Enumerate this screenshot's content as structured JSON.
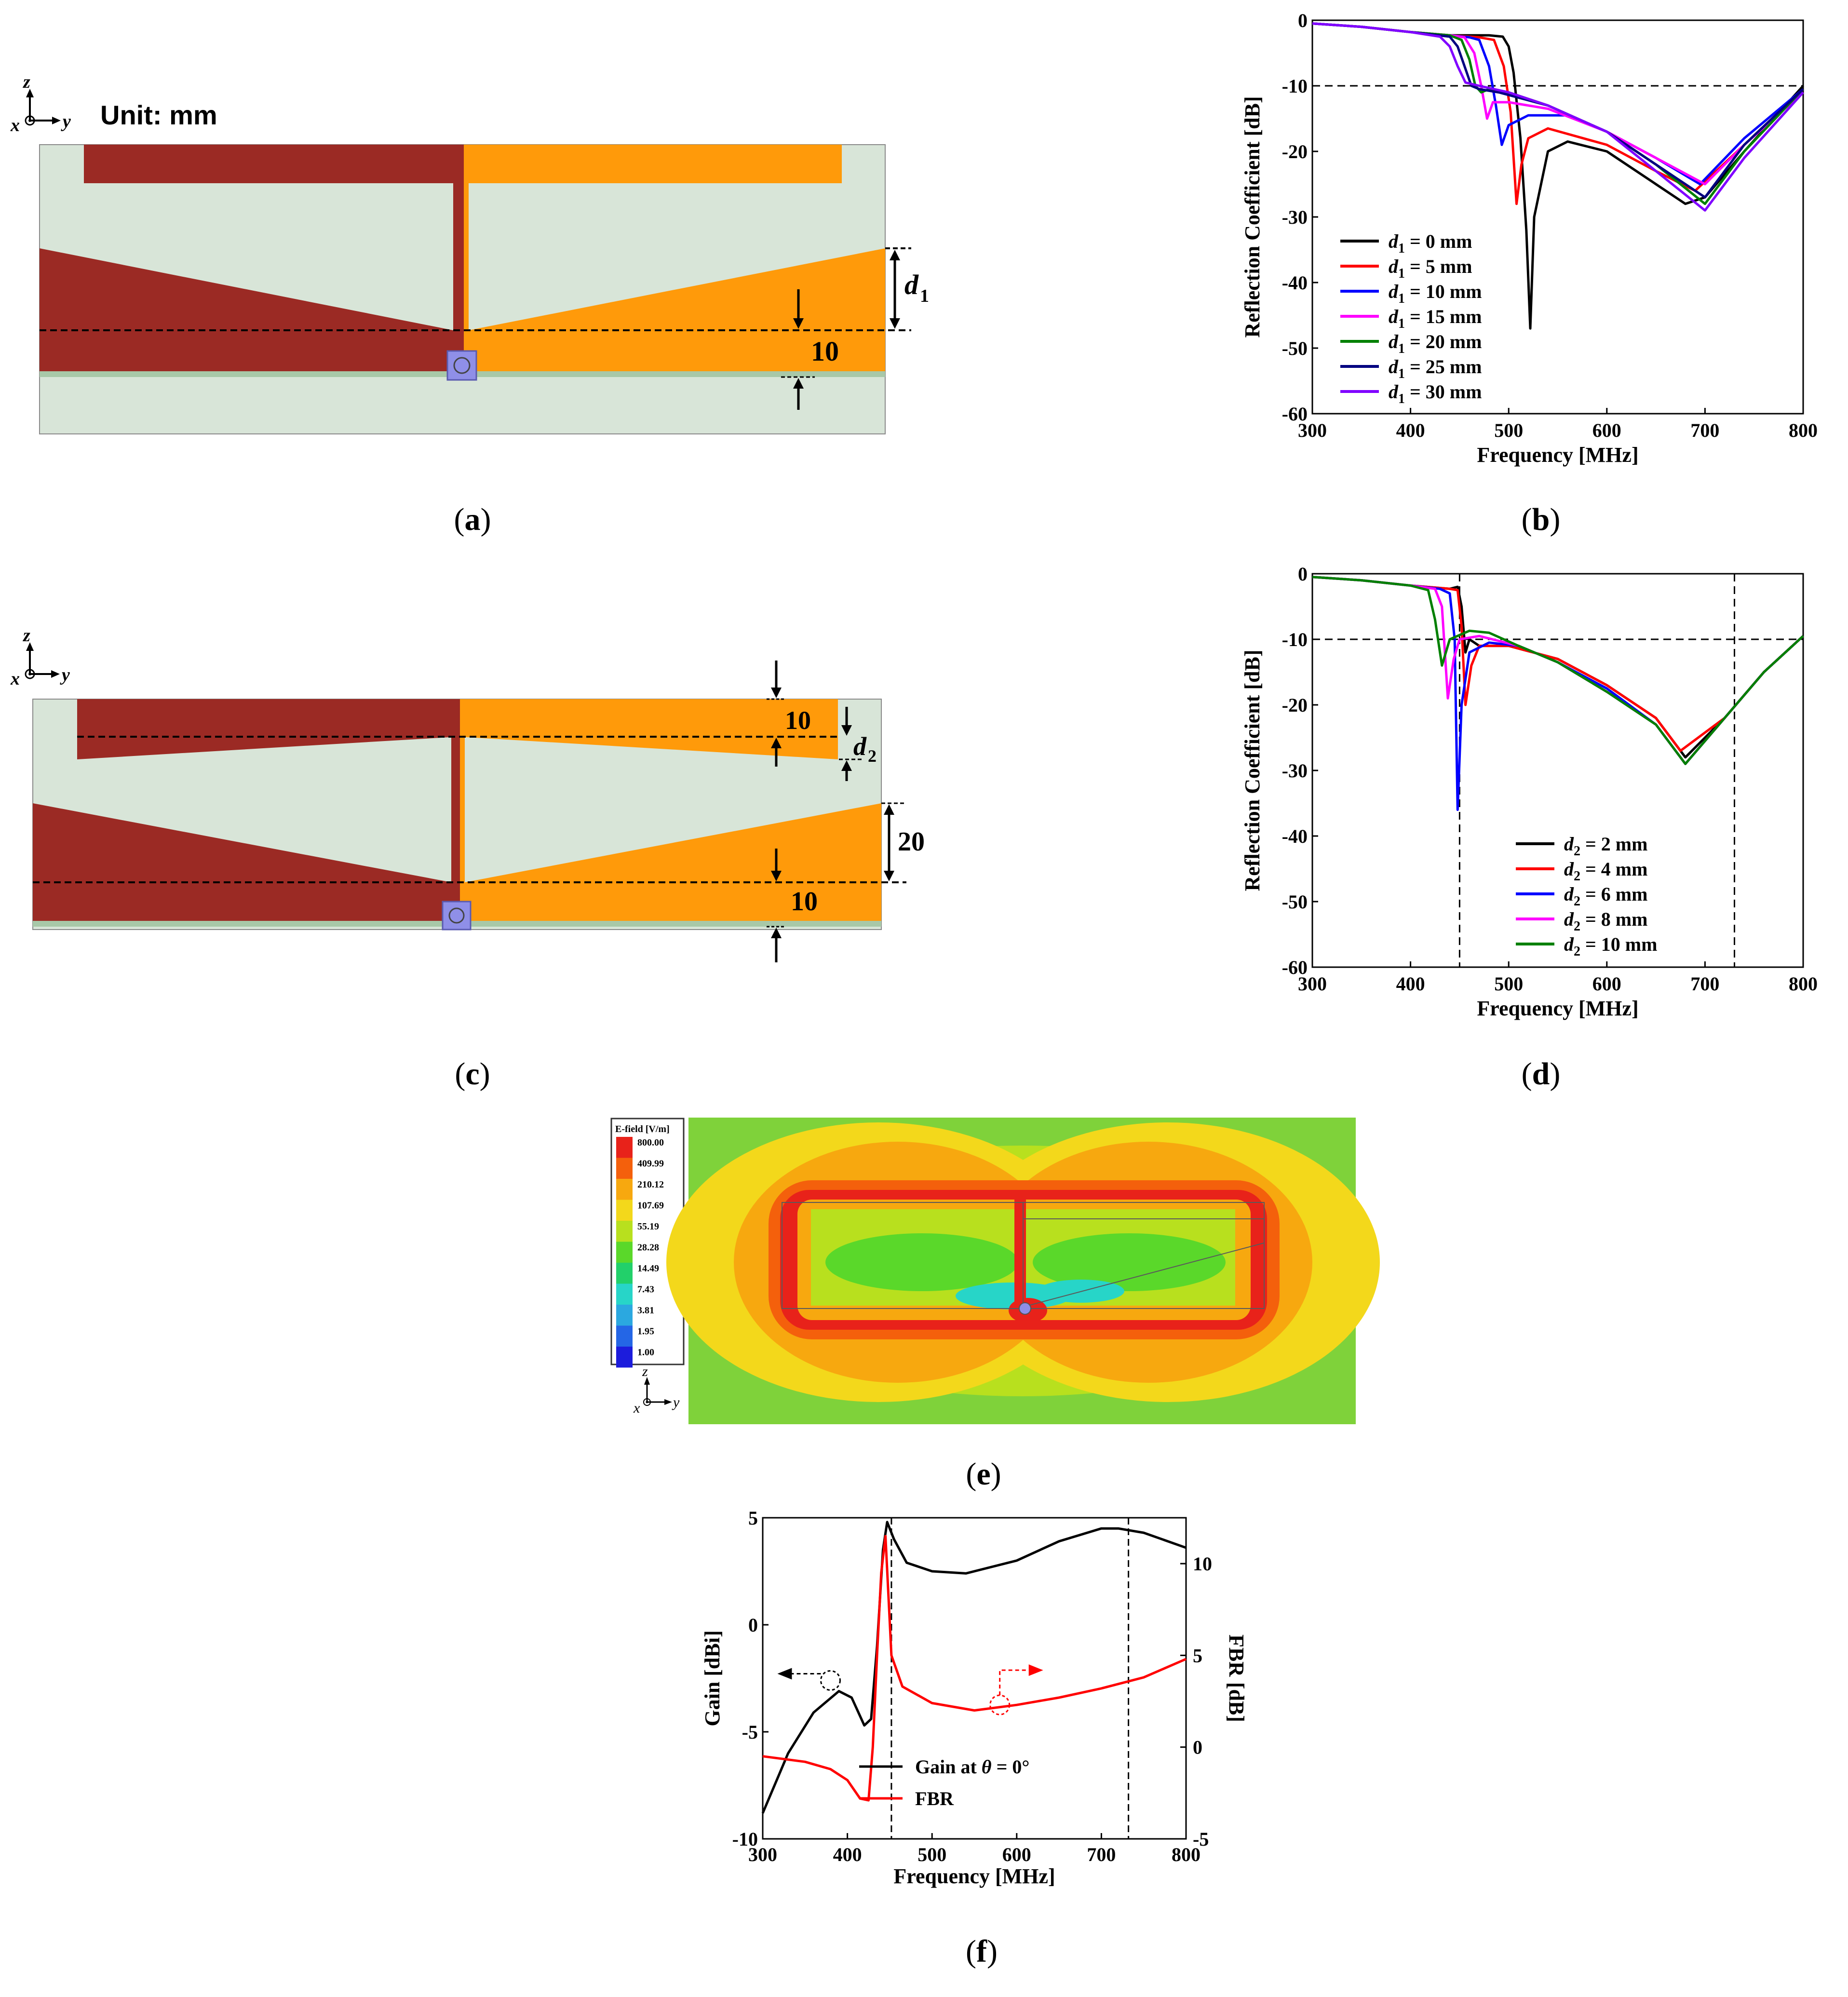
{
  "colors": {
    "dark_metal": "#9b2a24",
    "light_metal": "#ff9a0a",
    "substrate": "#d8e5d8",
    "ground_strip": "#a8c8a8",
    "port": "#8f8fe8"
  },
  "panel_a": {
    "caption_letter": "a",
    "unit_label": "Unit: mm",
    "axis_z": "z",
    "axis_x": "x",
    "axis_y": "y",
    "dim_d1_var": "d",
    "dim_d1_sub": "1",
    "dim_10": "10"
  },
  "panel_c": {
    "caption_letter": "c",
    "axis_z": "z",
    "axis_x": "x",
    "axis_y": "y",
    "dim_top_10": "10",
    "dim_d2_var": "d",
    "dim_d2_sub": "2",
    "dim_20": "20",
    "dim_bottom_10": "10"
  },
  "panel_e": {
    "caption_letter": "e",
    "legend_title": "E-field [V/m]",
    "legend_values": [
      "800.00",
      "409.99",
      "210.12",
      "107.69",
      "55.19",
      "28.28",
      "14.49",
      "7.43",
      "3.81",
      "1.95",
      "1.00"
    ],
    "legend_colors": [
      "#e8221a",
      "#f4600c",
      "#f7a80f",
      "#f3d81b",
      "#b8e01e",
      "#5ad82a",
      "#22d06a",
      "#27d5c8",
      "#2ba8e0",
      "#2466e6",
      "#1c1cdc"
    ],
    "axis_z": "z",
    "axis_x": "x",
    "axis_y": "y"
  },
  "chart_data": [
    {
      "id": "b",
      "caption_letter": "b",
      "type": "line",
      "xlabel": "Frequency [MHz]",
      "ylabel": "Reflection Coefficient [dB]",
      "xlim": [
        300,
        800
      ],
      "ylim": [
        -60,
        0
      ],
      "xticks": [
        "300",
        "400",
        "500",
        "600",
        "700",
        "800"
      ],
      "yticks": [
        "0",
        "-10",
        "-20",
        "-30",
        "-40",
        "-50",
        "-60"
      ],
      "reference_line_y": -10,
      "legend_var": "d",
      "legend_sub": "1",
      "series": [
        {
          "name": "0 mm",
          "color": "#000000",
          "x": [
            300,
            350,
            400,
            440,
            480,
            494,
            500,
            505,
            512,
            518,
            522,
            526,
            540,
            560,
            600,
            650,
            680,
            700,
            740,
            800
          ],
          "y": [
            -0.5,
            -1.0,
            -1.8,
            -2.3,
            -2.3,
            -2.5,
            -4,
            -8,
            -18,
            -32,
            -47,
            -30,
            -20,
            -18.5,
            -20,
            -25,
            -28,
            -27,
            -20,
            -10
          ]
        },
        {
          "name": "5 mm",
          "color": "#ff0000",
          "x": [
            300,
            350,
            400,
            440,
            470,
            485,
            495,
            502,
            508,
            513,
            520,
            540,
            600,
            650,
            690,
            740,
            800
          ],
          "y": [
            -0.5,
            -1.0,
            -1.8,
            -2.3,
            -2.6,
            -3,
            -7,
            -14,
            -28,
            -22,
            -18,
            -16.5,
            -19,
            -23,
            -26,
            -19,
            -10.5
          ]
        },
        {
          "name": "10 mm",
          "color": "#0000ff",
          "x": [
            300,
            350,
            400,
            440,
            460,
            470,
            480,
            487,
            493,
            500,
            520,
            560,
            600,
            650,
            695,
            740,
            800
          ],
          "y": [
            -0.5,
            -1.0,
            -1.8,
            -2.3,
            -2.6,
            -3,
            -7,
            -13,
            -19,
            -16,
            -14.5,
            -14.5,
            -17,
            -21,
            -25,
            -18,
            -10.5
          ]
        },
        {
          "name": "15 mm",
          "color": "#ff00ff",
          "x": [
            300,
            350,
            400,
            440,
            455,
            465,
            472,
            478,
            484,
            500,
            540,
            600,
            650,
            700,
            740,
            800
          ],
          "y": [
            -0.5,
            -1.0,
            -1.8,
            -2.3,
            -2.6,
            -5,
            -10,
            -15,
            -12.5,
            -12.5,
            -13.5,
            -17,
            -21,
            -25,
            -19,
            -11
          ]
        },
        {
          "name": "20 mm",
          "color": "#008000",
          "x": [
            300,
            350,
            400,
            440,
            452,
            460,
            466,
            472,
            480,
            500,
            540,
            600,
            650,
            700,
            740,
            800
          ],
          "y": [
            -0.5,
            -1.0,
            -1.8,
            -2.3,
            -3,
            -6,
            -10,
            -11,
            -10.5,
            -11,
            -13,
            -17,
            -22,
            -28,
            -20,
            -10.5
          ]
        },
        {
          "name": "25 mm",
          "color": "#000080",
          "x": [
            300,
            350,
            400,
            440,
            448,
            455,
            462,
            470,
            490,
            540,
            600,
            650,
            700,
            740,
            800
          ],
          "y": [
            -0.5,
            -1.0,
            -1.8,
            -2.5,
            -4,
            -7,
            -10,
            -10.5,
            -11,
            -13,
            -17,
            -22,
            -27,
            -19,
            -10.5
          ]
        },
        {
          "name": "30 mm",
          "color": "#8000ff",
          "x": [
            300,
            350,
            400,
            430,
            440,
            448,
            456,
            470,
            500,
            540,
            600,
            650,
            700,
            740,
            800
          ],
          "y": [
            -0.5,
            -1.0,
            -1.8,
            -2.5,
            -4,
            -7,
            -9.5,
            -10,
            -11,
            -13,
            -17,
            -23,
            -29,
            -21,
            -11
          ]
        }
      ]
    },
    {
      "id": "d",
      "caption_letter": "d",
      "type": "line",
      "xlabel": "Frequency [MHz]",
      "ylabel": "Reflection Coefficient [dB]",
      "xlim": [
        300,
        800
      ],
      "ylim": [
        -60,
        0
      ],
      "xticks": [
        "300",
        "400",
        "500",
        "600",
        "700",
        "800"
      ],
      "yticks": [
        "0",
        "-10",
        "-20",
        "-30",
        "-40",
        "-50",
        "-60"
      ],
      "reference_line_y": -10,
      "marker_lines_x": [
        450,
        730
      ],
      "legend_var": "d",
      "legend_sub": "2",
      "series": [
        {
          "name": "2 mm",
          "color": "#000000",
          "x": [
            300,
            350,
            400,
            440,
            448,
            452,
            456,
            460,
            470,
            500,
            550,
            600,
            650,
            680,
            720,
            760,
            800
          ],
          "y": [
            -0.5,
            -1.0,
            -1.8,
            -2.3,
            -2,
            -5,
            -12,
            -10,
            -11,
            -11,
            -13,
            -17,
            -22,
            -28,
            -22,
            -15,
            -9.5
          ]
        },
        {
          "name": "4 mm",
          "color": "#ff0000",
          "x": [
            300,
            350,
            400,
            440,
            448,
            452,
            456,
            462,
            470,
            500,
            550,
            600,
            650,
            675,
            720,
            760,
            800
          ],
          "y": [
            -0.5,
            -1.0,
            -1.8,
            -2.3,
            -2.5,
            -8,
            -20,
            -14,
            -11,
            -11,
            -13,
            -17,
            -22,
            -27,
            -22,
            -15,
            -9.5
          ]
        },
        {
          "name": "6 mm",
          "color": "#0000ff",
          "x": [
            300,
            350,
            400,
            430,
            440,
            445,
            448,
            452,
            460,
            480,
            510,
            550,
            600,
            650,
            680,
            720,
            760,
            800
          ],
          "y": [
            -0.5,
            -1.0,
            -1.8,
            -2.3,
            -3,
            -10,
            -36,
            -20,
            -12,
            -10.5,
            -11,
            -13.5,
            -17.5,
            -23,
            -29,
            -22,
            -15,
            -9.5
          ]
        },
        {
          "name": "8 mm",
          "color": "#ff00ff",
          "x": [
            300,
            350,
            400,
            425,
            432,
            438,
            444,
            450,
            470,
            510,
            550,
            600,
            650,
            680,
            720,
            760,
            800
          ],
          "y": [
            -0.5,
            -1.0,
            -1.8,
            -2.3,
            -5,
            -19,
            -13,
            -10,
            -9.5,
            -11,
            -13.5,
            -18,
            -23,
            -29,
            -22,
            -15,
            -9.5
          ]
        },
        {
          "name": "10 mm",
          "color": "#008000",
          "x": [
            300,
            350,
            400,
            418,
            425,
            432,
            440,
            460,
            480,
            510,
            550,
            600,
            650,
            680,
            720,
            760,
            800
          ],
          "y": [
            -0.5,
            -1.0,
            -1.8,
            -2.5,
            -7,
            -14,
            -10,
            -8.7,
            -9,
            -11,
            -13.5,
            -18,
            -23,
            -29,
            -22,
            -15,
            -9.5
          ]
        }
      ]
    },
    {
      "id": "f",
      "caption_letter": "f",
      "type": "line",
      "dual_axis": true,
      "xlabel": "Frequency [MHz]",
      "ylabel_left": "Gain [dBi]",
      "ylabel_right": "FBR [dB]",
      "xlim": [
        300,
        800
      ],
      "ylim_left": [
        -10,
        5
      ],
      "ylim_right": [
        -5,
        12.5
      ],
      "xticks": [
        "300",
        "400",
        "500",
        "600",
        "700",
        "800"
      ],
      "yticks_left": [
        "5",
        "0",
        "-5",
        "-10"
      ],
      "yticks_right": [
        "10",
        "5",
        "0",
        "-5"
      ],
      "marker_lines_x": [
        452,
        732
      ],
      "legend": [
        {
          "name_pre": "Gain at ",
          "name_var": "θ",
          "name_post": " = 0°",
          "color": "#000000"
        },
        {
          "name_pre": "FBR",
          "name_var": "",
          "name_post": "",
          "color": "#ff0000"
        }
      ],
      "series": [
        {
          "name": "Gain at θ = 0°",
          "axis": "left",
          "color": "#000000",
          "x": [
            300,
            330,
            360,
            390,
            405,
            420,
            428,
            435,
            442,
            447,
            455,
            470,
            500,
            540,
            600,
            650,
            700,
            720,
            750,
            800
          ],
          "y": [
            -8.8,
            -6.0,
            -4.1,
            -3.1,
            -3.4,
            -4.7,
            -4.4,
            -1,
            3.5,
            4.8,
            4.0,
            2.9,
            2.5,
            2.4,
            3.0,
            3.9,
            4.5,
            4.5,
            4.3,
            3.6
          ]
        },
        {
          "name": "FBR",
          "axis": "right",
          "color": "#ff0000",
          "x": [
            300,
            350,
            380,
            400,
            415,
            425,
            430,
            435,
            440,
            445,
            452,
            465,
            500,
            550,
            600,
            650,
            700,
            750,
            800
          ],
          "y": [
            -0.5,
            -0.8,
            -1.2,
            -1.8,
            -2.8,
            -2.9,
            0,
            5,
            9.5,
            11.5,
            5,
            3.3,
            2.4,
            2.0,
            2.3,
            2.7,
            3.2,
            3.8,
            4.8
          ]
        }
      ]
    }
  ]
}
